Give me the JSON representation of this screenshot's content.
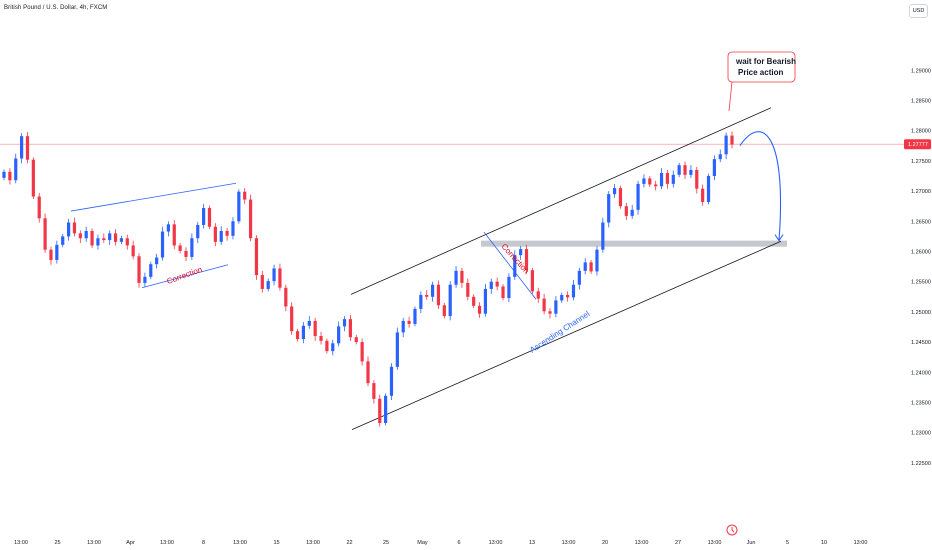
{
  "header": {
    "symbol": "British Pound / U.S. Dollar, 4h, FXCM",
    "currency": "USD"
  },
  "colors": {
    "up": "#2962ff",
    "down": "#f23645",
    "channel": "#131722",
    "trendline": "#2962ff",
    "zone": "#b2b5be",
    "price_line": "#f23645"
  },
  "chart_data": {
    "type": "candlestick",
    "title": "",
    "symbol": "British Pound / U.S. Dollar",
    "interval": "4h",
    "source": "FXCM",
    "ylim": [
      1.2205,
      1.2942
    ],
    "y_ticks": [
      "1.29000",
      "1.28500",
      "1.28000",
      "1.27500",
      "1.27000",
      "1.26500",
      "1.26000",
      "1.25500",
      "1.25000",
      "1.24500",
      "1.24000",
      "1.23500",
      "1.23000",
      "1.22500"
    ],
    "x_ticks": [
      "13:00",
      "25",
      "13:00",
      "Apr",
      "13:00",
      "8",
      "13:00",
      "15",
      "13:00",
      "22",
      "25",
      "May",
      "6",
      "13:00",
      "13",
      "13:00",
      "20",
      "13:00",
      "27",
      "13:00",
      "Jun",
      "5",
      "10",
      "13:00"
    ],
    "current_price": "1.27777",
    "closes": [
      1.2732,
      1.2718,
      1.2754,
      1.2791,
      1.2752,
      1.2691,
      1.2655,
      1.2603,
      1.2586,
      1.2611,
      1.2625,
      1.2648,
      1.263,
      1.2622,
      1.2634,
      1.261,
      1.2622,
      1.2619,
      1.263,
      1.2616,
      1.2622,
      1.261,
      1.2592,
      1.2548,
      1.2558,
      1.2579,
      1.259,
      1.2633,
      1.2645,
      1.261,
      1.2601,
      1.2591,
      1.2622,
      1.2644,
      1.2672,
      1.2641,
      1.2616,
      1.2634,
      1.2626,
      1.265,
      1.2699,
      1.2686,
      1.2622,
      1.2561,
      1.2538,
      1.2551,
      1.2572,
      1.254,
      1.2509,
      1.2468,
      1.2455,
      1.2477,
      1.2485,
      1.246,
      1.2452,
      1.2435,
      1.2448,
      1.2476,
      1.2488,
      1.2458,
      1.245,
      1.2418,
      1.2382,
      1.2356,
      1.2316,
      1.2361,
      1.2409,
      1.2466,
      1.2485,
      1.248,
      1.2505,
      1.2528,
      1.2525,
      1.2545,
      1.2511,
      1.2493,
      1.2545,
      1.2568,
      1.2548,
      1.2525,
      1.251,
      1.2497,
      1.2538,
      1.255,
      1.2542,
      1.2523,
      1.2558,
      1.2594,
      1.2604,
      1.2569,
      1.2534,
      1.2522,
      1.2501,
      1.2497,
      1.2519,
      1.2528,
      1.2524,
      1.2545,
      1.2568,
      1.2582,
      1.2567,
      1.2603,
      1.2648,
      1.2695,
      1.2705,
      1.2675,
      1.2659,
      1.2669,
      1.2712,
      1.2721,
      1.2711,
      1.2708,
      1.273,
      1.2712,
      1.2727,
      1.2743,
      1.2727,
      1.2735,
      1.2704,
      1.2682,
      1.2725,
      1.2753,
      1.2761,
      1.2792,
      1.2777
    ],
    "annotations": {
      "channel_label": "Ascending Channel",
      "correction_1": "Correction",
      "correction_2": "Correction",
      "note": [
        "wait for Bearish",
        "Price action"
      ]
    }
  }
}
